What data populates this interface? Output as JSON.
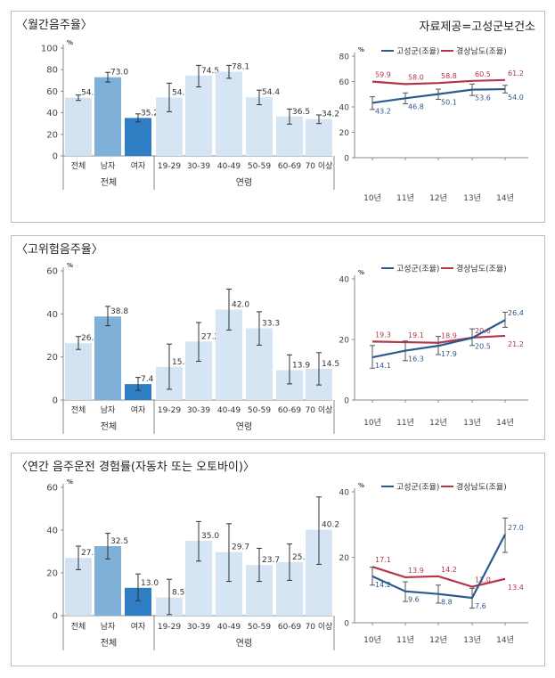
{
  "credit": "자료제공=고성군보건소",
  "panels": [
    {
      "title": "〈월간음주율〉",
      "chart_data": [
        {
          "type": "bar",
          "ylim": [
            0,
            100
          ],
          "yticks": [
            0,
            20,
            40,
            60,
            80,
            100
          ],
          "yunit": "%",
          "categories": [
            "전체",
            "남자",
            "여자",
            "19-29",
            "30-39",
            "40-49",
            "50-59",
            "60-69",
            "70 이상"
          ],
          "values": [
            54.0,
            73.0,
            35.2,
            54.2,
            74.5,
            78.1,
            54.4,
            36.5,
            34.2
          ],
          "value_labels": [
            "54.0",
            "73.0",
            "35.2",
            "54.2",
            "74.5",
            "78.1",
            "54.4",
            "36.5",
            "34.2"
          ],
          "error_low": [
            51.5,
            68.5,
            31.5,
            41.0,
            64.0,
            72.0,
            47.5,
            29.5,
            30.0
          ],
          "error_high": [
            56.5,
            77.5,
            39.0,
            67.5,
            84.0,
            84.0,
            61.0,
            43.5,
            38.0
          ],
          "groups": [
            "전체",
            "연령"
          ]
        },
        {
          "type": "line",
          "x": [
            "10년",
            "11년",
            "12년",
            "13년",
            "14년"
          ],
          "ylim": [
            0,
            80
          ],
          "yticks": [
            0,
            20,
            40,
            60,
            80
          ],
          "yunit": "%",
          "legend_position": "top",
          "series": [
            {
              "name": "고성군(조율)",
              "color": "#2b5a8e",
              "values": [
                43.2,
                46.8,
                50.1,
                53.6,
                54.0
              ],
              "labels": [
                "43.2",
                "46.8",
                "50.1",
                "53.6",
                "54.0"
              ],
              "error_low": [
                38.0,
                42.5,
                46.0,
                49.0,
                51.0
              ],
              "error_high": [
                48.0,
                51.0,
                54.0,
                58.0,
                57.0
              ]
            },
            {
              "name": "경상남도(조율)",
              "color": "#b5364b",
              "values": [
                59.9,
                58.0,
                58.8,
                60.5,
                61.2
              ],
              "labels": [
                "59.9",
                "58.0",
                "58.8",
                "60.5",
                "61.2"
              ]
            }
          ]
        }
      ]
    },
    {
      "title": "〈고위험음주율〉",
      "chart_data": [
        {
          "type": "bar",
          "ylim": [
            0,
            60
          ],
          "yticks": [
            0,
            20,
            40,
            60
          ],
          "yunit": "%",
          "categories": [
            "전체",
            "남자",
            "여자",
            "19-29",
            "30-39",
            "40-49",
            "50-59",
            "60-69",
            "70 이상"
          ],
          "values": [
            26.4,
            38.8,
            7.4,
            15.4,
            27.2,
            42.0,
            33.3,
            13.9,
            14.5
          ],
          "value_labels": [
            "26.4",
            "38.8",
            "7.4",
            "15.4",
            "27.2",
            "42.0",
            "33.3",
            "13.9",
            "14.5"
          ],
          "error_low": [
            23.5,
            34.5,
            4.5,
            5.0,
            18.0,
            32.5,
            25.5,
            7.5,
            7.0
          ],
          "error_high": [
            29.5,
            43.5,
            10.5,
            26.0,
            36.0,
            51.5,
            41.0,
            21.0,
            22.0
          ],
          "groups": [
            "전체",
            "연령"
          ]
        },
        {
          "type": "line",
          "x": [
            "10년",
            "11년",
            "12년",
            "13년",
            "14년"
          ],
          "ylim": [
            0,
            40
          ],
          "yticks": [
            0,
            20,
            40
          ],
          "yunit": "%",
          "legend_position": "top",
          "series": [
            {
              "name": "고성군(조율)",
              "color": "#2b5a8e",
              "values": [
                14.1,
                16.3,
                17.9,
                20.5,
                26.4
              ],
              "labels": [
                "14.1",
                "16.3",
                "17.9",
                "20.5",
                "26.4"
              ],
              "error_low": [
                10.5,
                13.0,
                15.0,
                18.0,
                24.0
              ],
              "error_high": [
                18.0,
                19.5,
                21.0,
                23.5,
                29.0
              ]
            },
            {
              "name": "경상남도(조율)",
              "color": "#b5364b",
              "values": [
                19.3,
                19.1,
                18.9,
                20.6,
                21.2
              ],
              "labels": [
                "19.3",
                "19.1",
                "18.9",
                "20.6",
                "21.2"
              ]
            }
          ]
        }
      ]
    },
    {
      "title": "〈연간 음주운전 경험률(자동차 또는 오토바이)〉",
      "chart_data": [
        {
          "type": "bar",
          "ylim": [
            0,
            60
          ],
          "yticks": [
            0,
            20,
            40,
            60
          ],
          "yunit": "%",
          "categories": [
            "전체",
            "남자",
            "여자",
            "19-29",
            "30-39",
            "40-49",
            "50-59",
            "60-69",
            "70 이상"
          ],
          "values": [
            27.0,
            32.5,
            13.0,
            8.5,
            35.0,
            29.7,
            23.7,
            25.0,
            40.2
          ],
          "value_labels": [
            "27.0",
            "32.5",
            "13.0",
            "8.5",
            "35.0",
            "29.7",
            "23.7",
            "25.0",
            "40.2"
          ],
          "error_low": [
            21.5,
            26.5,
            7.0,
            0.5,
            25.5,
            16.0,
            16.0,
            16.5,
            24.0
          ],
          "error_high": [
            32.5,
            38.5,
            19.5,
            17.0,
            44.0,
            43.0,
            31.5,
            33.5,
            55.5
          ],
          "groups": [
            "전체",
            "연령"
          ]
        },
        {
          "type": "line",
          "x": [
            "10년",
            "11년",
            "12년",
            "13년",
            "14년"
          ],
          "ylim": [
            0,
            40
          ],
          "yticks": [
            0,
            20,
            40
          ],
          "yunit": "%",
          "legend_position": "top",
          "series": [
            {
              "name": "고성군(조율)",
              "color": "#2b5a8e",
              "values": [
                14.2,
                9.6,
                8.8,
                7.6,
                27.0
              ],
              "labels": [
                "14.2",
                "9.6",
                "8.8",
                "7.6",
                "27.0"
              ],
              "error_low": [
                11.5,
                6.5,
                6.0,
                4.5,
                21.5
              ],
              "error_high": [
                17.0,
                12.5,
                11.5,
                10.5,
                32.0
              ]
            },
            {
              "name": "경상남도(조율)",
              "color": "#b5364b",
              "values": [
                17.1,
                13.9,
                14.2,
                11.0,
                13.4
              ],
              "labels": [
                "17.1",
                "13.9",
                "14.2",
                "11.0",
                "13.4"
              ]
            }
          ]
        }
      ]
    }
  ]
}
